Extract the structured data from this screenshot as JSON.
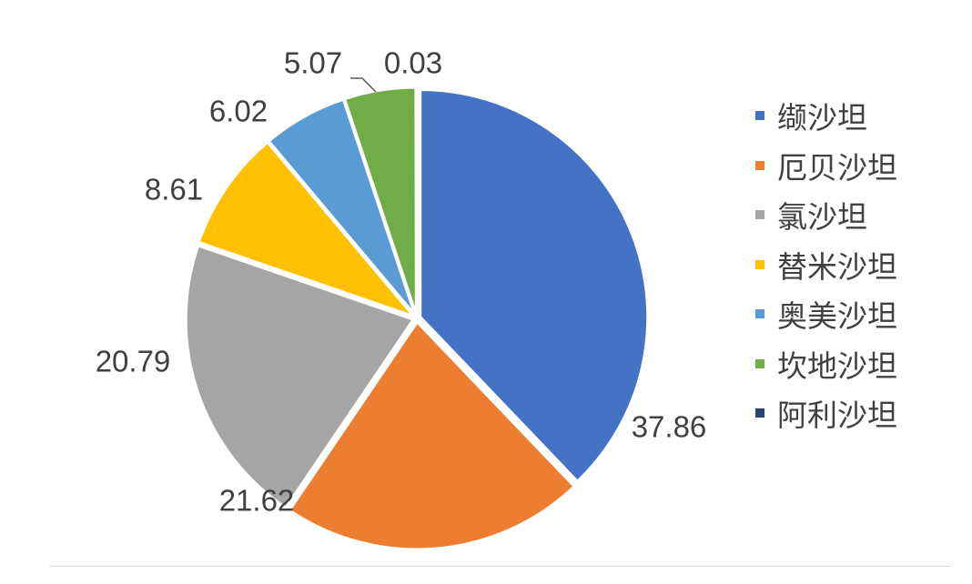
{
  "chart_data": {
    "type": "pie",
    "categories": [
      "缬沙坦",
      "厄贝沙坦",
      "氯沙坦",
      "替米沙坦",
      "奥美沙坦",
      "坎地沙坦",
      "阿利沙坦"
    ],
    "values": [
      37.86,
      21.62,
      20.79,
      8.61,
      6.02,
      5.07,
      0.03
    ],
    "data_labels": [
      "37.86",
      "21.62",
      "20.79",
      "8.61",
      "6.02",
      "5.07",
      "0.03"
    ],
    "colors": [
      "#4472C4",
      "#ED7D31",
      "#A5A5A5",
      "#FFC000",
      "#5B9BD5",
      "#70AD47",
      "#264478"
    ],
    "start": "12 o'clock",
    "direction": "clockwise",
    "legend_position": "right"
  }
}
